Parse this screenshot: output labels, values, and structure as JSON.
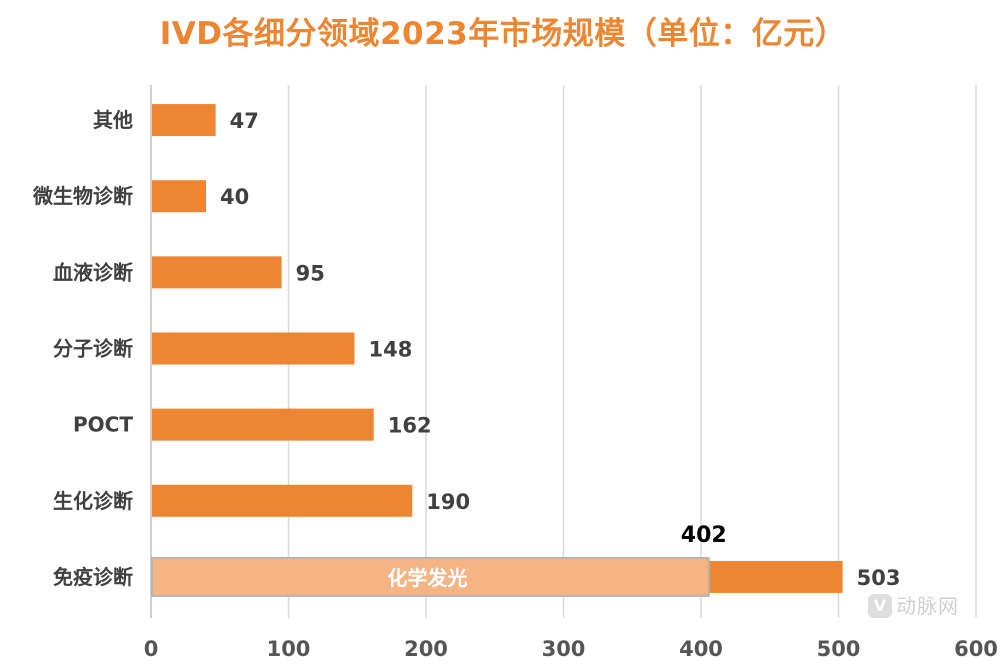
{
  "chart_data": {
    "type": "bar",
    "orientation": "horizontal",
    "title": "IVD各细分领域2023年市场规模（单位：亿元）",
    "categories": [
      "其他",
      "微生物诊断",
      "血液诊断",
      "分子诊断",
      "POCT",
      "生化诊断",
      "免疫诊断"
    ],
    "values": [
      47,
      40,
      95,
      148,
      162,
      190,
      503
    ],
    "xlim": [
      0,
      600
    ],
    "xticks": [
      0,
      100,
      200,
      300,
      400,
      500,
      600
    ],
    "grid": "vertical",
    "bar_color": "#ED8632",
    "overlay": {
      "category": "免疫诊断",
      "label": "化学发光",
      "value": 402,
      "color": "#F4B484"
    },
    "xlabel": "",
    "ylabel": ""
  },
  "watermark": {
    "logo_text": "动脉网"
  }
}
